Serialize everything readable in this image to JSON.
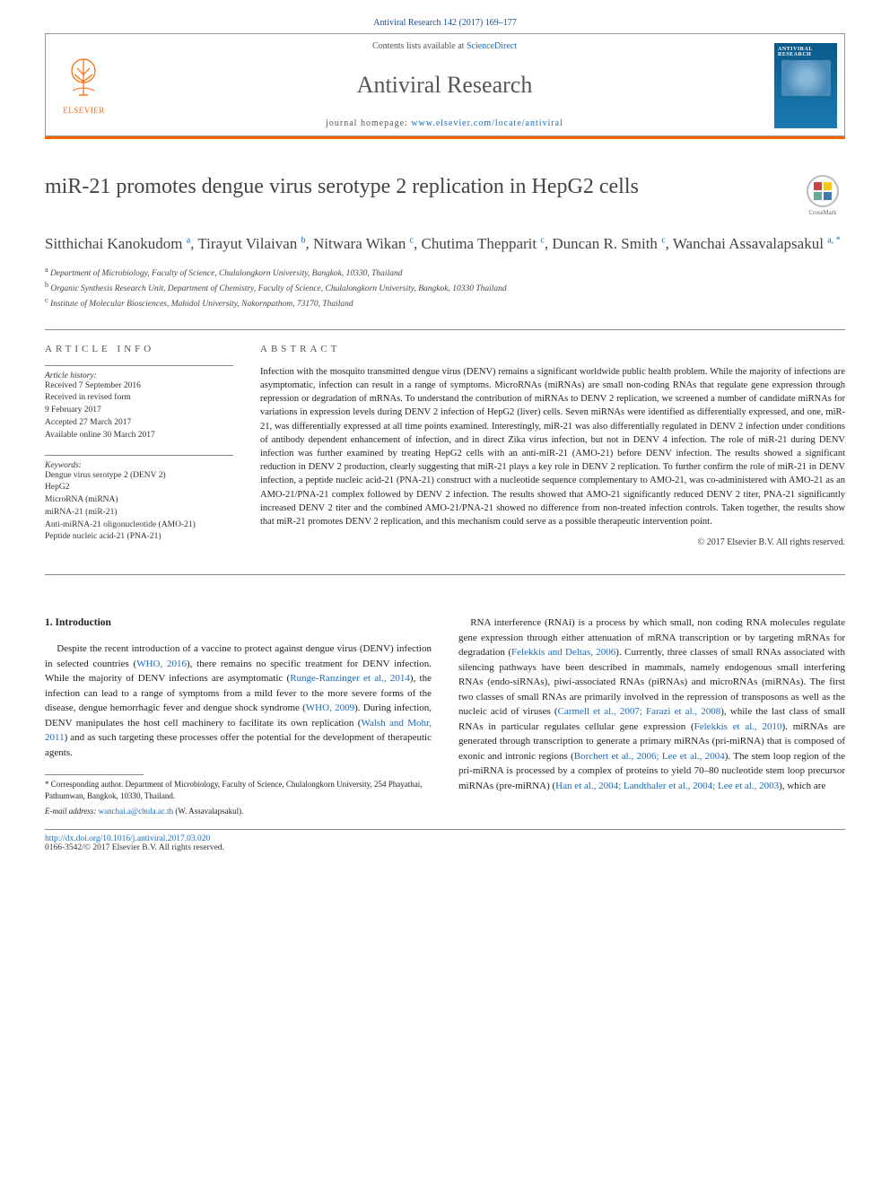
{
  "citation": "Antiviral Research 142 (2017) 169–177",
  "header": {
    "contents_prefix": "Contents lists available at ",
    "contents_link": "ScienceDirect",
    "journal_name": "Antiviral Research",
    "homepage_prefix": "journal homepage: ",
    "homepage_link": "www.elsevier.com/locate/antiviral",
    "publisher": "ELSEVIER",
    "cover_title": "ANTIVIRAL RESEARCH"
  },
  "title": "miR-21 promotes dengue virus serotype 2 replication in HepG2 cells",
  "crossmark": "CrossMark",
  "authors_html": "Sitthichai Kanokudom <sup>a</sup>, Tirayut Vilaivan <sup>b</sup>, Nitwara Wikan <sup>c</sup>, Chutima Thepparit <sup>c</sup>, Duncan R. Smith <sup>c</sup>, Wanchai Assavalapsakul <sup>a, *</sup>",
  "affiliations": {
    "a": "Department of Microbiology, Faculty of Science, Chulalongkorn University, Bangkok, 10330, Thailand",
    "b": "Organic Synthesis Research Unit, Department of Chemistry, Faculty of Science, Chulalongkorn University, Bangkok, 10330 Thailand",
    "c": "Institute of Molecular Biosciences, Mahidol University, Nakornpathom, 73170, Thailand"
  },
  "article_info": {
    "heading": "ARTICLE INFO",
    "history_label": "Article history:",
    "history": "Received 7 September 2016\nReceived in revised form\n9 February 2017\nAccepted 27 March 2017\nAvailable online 30 March 2017",
    "keywords_label": "Keywords:",
    "keywords": "Dengue virus serotype 2 (DENV 2)\nHepG2\nMicroRNA (miRNA)\nmiRNA-21 (miR-21)\nAnti-miRNA-21 oligonucleotide (AMO-21)\nPeptide nucleic acid-21 (PNA-21)"
  },
  "abstract": {
    "heading": "ABSTRACT",
    "text": "Infection with the mosquito transmitted dengue virus (DENV) remains a significant worldwide public health problem. While the majority of infections are asymptomatic, infection can result in a range of symptoms. MicroRNAs (miRNAs) are small non-coding RNAs that regulate gene expression through repression or degradation of mRNAs. To understand the contribution of miRNAs to DENV 2 replication, we screened a number of candidate miRNAs for variations in expression levels during DENV 2 infection of HepG2 (liver) cells. Seven miRNAs were identified as differentially expressed, and one, miR-21, was differentially expressed at all time points examined. Interestingly, miR-21 was also differentially regulated in DENV 2 infection under conditions of antibody dependent enhancement of infection, and in direct Zika virus infection, but not in DENV 4 infection. The role of miR-21 during DENV infection was further examined by treating HepG2 cells with an anti-miR-21 (AMO-21) before DENV infection. The results showed a significant reduction in DENV 2 production, clearly suggesting that miR-21 plays a key role in DENV 2 replication. To further confirm the role of miR-21 in DENV infection, a peptide nucleic acid-21 (PNA-21) construct with a nucleotide sequence complementary to AMO-21, was co-administered with AMO-21 as an AMO-21/PNA-21 complex followed by DENV 2 infection. The results showed that AMO-21 significantly reduced DENV 2 titer, PNA-21 significantly increased DENV 2 titer and the combined AMO-21/PNA-21 showed no difference from non-treated infection controls. Taken together, the results show that miR-21 promotes DENV 2 replication, and this mechanism could serve as a possible therapeutic intervention point.",
    "copyright": "© 2017 Elsevier B.V. All rights reserved."
  },
  "body": {
    "section_heading": "1. Introduction",
    "col1_html": "Despite the recent introduction of a vaccine to protect against dengue virus (DENV) infection in selected countries (<span class=\"ref-link\">WHO, 2016</span>), there remains no specific treatment for DENV infection. While the majority of DENV infections are asymptomatic (<span class=\"ref-link\">Runge-Ranzinger et al., 2014</span>), the infection can lead to a range of symptoms from a mild fever to the more severe forms of the disease, dengue hemorrhagic fever and dengue shock syndrome (<span class=\"ref-link\">WHO, 2009</span>). During infection, DENV manipulates the host cell machinery to facilitate its own replication (<span class=\"ref-link\">Walsh and Mohr, 2011</span>) and as such targeting these processes offer the potential for the development of therapeutic agents.",
    "col2_html": "RNA interference (RNAi) is a process by which small, non coding RNA molecules regulate gene expression through either attenuation of mRNA transcription or by targeting mRNAs for degradation (<span class=\"ref-link\">Felekkis and Deltas, 2006</span>). Currently, three classes of small RNAs associated with silencing pathways have been described in mammals, namely endogenous small interfering RNAs (endo-siRNAs), piwi-associated RNAs (piRNAs) and microRNAs (miRNAs). The first two classes of small RNAs are primarily involved in the repression of transposons as well as the nucleic acid of viruses (<span class=\"ref-link\">Carmell et al., 2007; Farazi et al., 2008</span>), while the last class of small RNAs in particular regulates cellular gene expression (<span class=\"ref-link\">Felekkis et al., 2010</span>). miRNAs are generated through transcription to generate a primary miRNAs (pri-miRNA) that is composed of exonic and intronic regions (<span class=\"ref-link\">Borchert et al., 2006; Lee et al., 2004</span>). The stem loop region of the pri-miRNA is processed by a complex of proteins to yield 70–80 nucleotide stem loop precursor miRNAs (pre-miRNA) (<span class=\"ref-link\">Han et al., 2004; Landthaler et al., 2004; Lee et al., 2003</span>), which are"
  },
  "footnote": {
    "corresponding": "* Corresponding author. Department of Microbiology, Faculty of Science, Chulalongkorn University, 254 Phayathai, Pathumwan, Bangkok, 10330, Thailand.",
    "email_label": "E-mail address:",
    "email": "wanchai.a@chula.ac.th",
    "email_name": "(W. Assavalapsakul)."
  },
  "footer": {
    "doi": "http://dx.doi.org/10.1016/j.antiviral.2017.03.020",
    "issn_copy": "0166-3542/© 2017 Elsevier B.V. All rights reserved."
  },
  "colors": {
    "orange": "#ff6600",
    "link": "#1a6bb8",
    "text": "#222222",
    "gray": "#555555"
  }
}
